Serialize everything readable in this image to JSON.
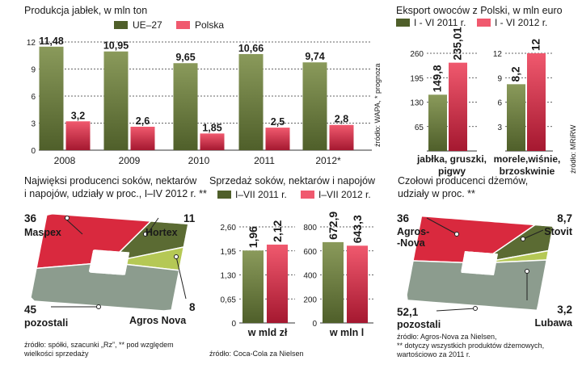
{
  "colors": {
    "green_top": "#8a9a5b",
    "green_bottom": "#4f5f2a",
    "red_top": "#f0596e",
    "red_bottom": "#a51830",
    "ring_red": "#d9293e",
    "ring_dgreen": "#5b6b33",
    "ring_gray": "#8c9c8e",
    "ring_lgreen": "#b5c855"
  },
  "chart_data": [
    {
      "type": "bar",
      "title": "Produkcja jabłek, w mln ton",
      "legend": [
        "UE–27",
        "Polska"
      ],
      "categories": [
        "2008",
        "2009",
        "2010",
        "2011",
        "2012*"
      ],
      "series": [
        {
          "name": "UE–27",
          "values": [
            11.48,
            10.95,
            9.65,
            10.66,
            9.74
          ],
          "labels": [
            "11,48",
            "10,95",
            "9,65",
            "10,66",
            "9,74"
          ]
        },
        {
          "name": "Polska",
          "values": [
            3.2,
            2.6,
            1.85,
            2.5,
            2.8
          ],
          "labels": [
            "3,2",
            "2,6",
            "1,85",
            "2,5",
            "2,8"
          ]
        }
      ],
      "yticks": [
        "0",
        "3",
        "6",
        "9",
        "12"
      ],
      "ylim": [
        0,
        12
      ],
      "source": "źródło: WAPA, * prognoza"
    },
    {
      "type": "bar",
      "title": "Eksport owoców z Polski, w mln euro",
      "legend": [
        "I - VI 2011 r.",
        "I - VI 2012 r."
      ],
      "panels": [
        {
          "category": [
            "jabłka, gruszki,",
            "pigwy"
          ],
          "yticks": [
            "65",
            "130",
            "195",
            "260"
          ],
          "ylim": [
            0,
            260
          ],
          "values": [
            149.8,
            235.01
          ],
          "labels": [
            "149,8",
            "235,01"
          ]
        },
        {
          "category": [
            "morele,wiśnie,",
            "brzoskwinie"
          ],
          "yticks": [
            "3",
            "6",
            "9",
            "12"
          ],
          "ylim": [
            0,
            12
          ],
          "values": [
            8.2,
            12
          ],
          "labels": [
            "8,2",
            "12"
          ]
        }
      ],
      "source": "źródło: MRiRW"
    },
    {
      "type": "pie",
      "title": [
        "Najwięksi producenci soków, nektarów",
        "i napojów, udziały w proc., I–IV 2012 r. **"
      ],
      "slices": [
        {
          "label": "Maspex",
          "value": 36,
          "value_label": "36"
        },
        {
          "label": "Hortex",
          "value": 11,
          "value_label": "11"
        },
        {
          "label": "Agros Nova",
          "value": 8,
          "value_label": "8"
        },
        {
          "label": "pozostali",
          "value": 45,
          "value_label": "45"
        }
      ],
      "source": [
        "źródło: spółki, szacunki „Rz”, ** pod względem",
        "wielkości sprzedaży"
      ]
    },
    {
      "type": "bar",
      "title": "Sprzedaż soków, nektarów i napojów",
      "legend": [
        "I–VII 2011 r.",
        "I–VII 2012 r."
      ],
      "panels": [
        {
          "category": [
            "w mld zł"
          ],
          "yticks": [
            "0",
            "0,65",
            "1,30",
            "1,95",
            "2,60"
          ],
          "ylim": [
            0,
            2.6
          ],
          "values": [
            1.96,
            2.12
          ],
          "labels": [
            "1,96",
            "2,12"
          ]
        },
        {
          "category": [
            "w mln l"
          ],
          "yticks": [
            "0",
            "200",
            "400",
            "600",
            "800"
          ],
          "ylim": [
            0,
            800
          ],
          "values": [
            672.9,
            643.3
          ],
          "labels": [
            "672,9",
            "643,3"
          ]
        }
      ],
      "source": "źródło: Coca-Cola za Nielsen"
    },
    {
      "type": "pie",
      "title": [
        "Czołowi producenci dżemów,",
        "udziały w proc. **"
      ],
      "slices": [
        {
          "label": [
            "Agros-",
            "-Nova"
          ],
          "value": 36,
          "value_label": "36"
        },
        {
          "label": [
            "Stovit"
          ],
          "value": 8.7,
          "value_label": "8,7"
        },
        {
          "label": [
            "Lubawa"
          ],
          "value": 3.2,
          "value_label": "3,2"
        },
        {
          "label": [
            "pozostali"
          ],
          "value": 52.1,
          "value_label": "52,1"
        }
      ],
      "source": [
        "źródło: Agros-Nova za Nielsen,",
        "** dotyczy wszystkich produktów dżemowych,",
        "wartościowo za 2011 r."
      ]
    }
  ]
}
